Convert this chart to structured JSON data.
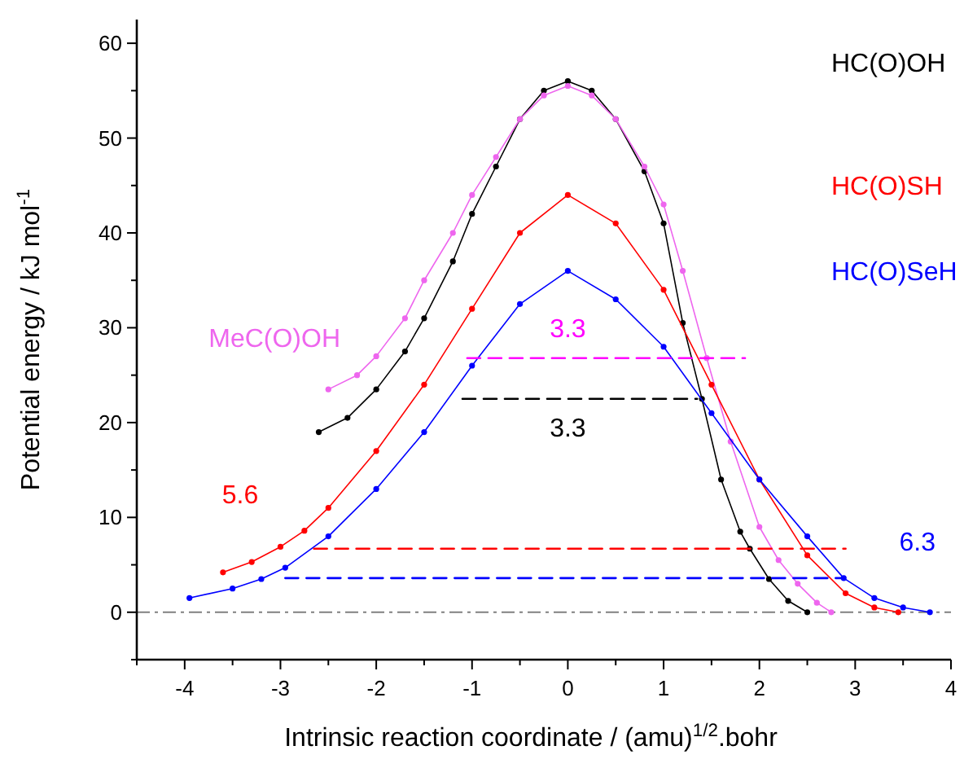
{
  "chart_data": {
    "type": "line",
    "xlabel": "Intrinsic reaction coordinate / (amu)$^{1/2}$.bohr",
    "ylabel": "Potential energy / kJ mol$^{-1}$",
    "xlim": [
      -4.5,
      4
    ],
    "xticks": [
      -4,
      -3,
      -2,
      -1,
      0,
      1,
      2,
      3,
      4
    ],
    "ylim": [
      -5,
      62.5
    ],
    "yticks": [
      0,
      10,
      20,
      30,
      40,
      50,
      60
    ],
    "grid": false,
    "series": [
      {
        "name": "HC(O)OH",
        "color": "#000000",
        "marker": "circle",
        "x": [
          -2.6,
          -2.3,
          -2,
          -1.7,
          -1.5,
          -1.2,
          -1,
          -0.75,
          -0.5,
          -0.25,
          0,
          0.25,
          0.5,
          0.8,
          1,
          1.2,
          1.4,
          1.6,
          1.8,
          1.9,
          2.1,
          2.3,
          2.5
        ],
        "values": [
          19,
          20.5,
          23.5,
          27.5,
          31,
          37,
          42,
          47,
          52,
          55,
          56,
          55,
          52,
          46.5,
          41,
          30.5,
          22.5,
          14,
          8.5,
          6.7,
          3.5,
          1.2,
          0
        ]
      },
      {
        "name": "MeC(O)OH",
        "color": "#ee66ee",
        "marker": "circle",
        "x": [
          -2.5,
          -2.2,
          -2,
          -1.7,
          -1.5,
          -1.2,
          -1,
          -0.75,
          -0.5,
          -0.25,
          0,
          0.25,
          0.5,
          0.8,
          1,
          1.2,
          1.45,
          1.7,
          2,
          2.2,
          2.4,
          2.6,
          2.75
        ],
        "values": [
          23.5,
          25,
          27,
          31,
          35,
          40,
          44,
          48,
          52,
          54.5,
          55.5,
          54.5,
          52,
          47,
          43,
          36,
          26.8,
          18,
          9,
          5.5,
          3,
          1,
          0
        ]
      },
      {
        "name": "HC(O)SH",
        "color": "#ff0000",
        "marker": "circle",
        "x": [
          -3.6,
          -3.3,
          -3,
          -2.75,
          -2.5,
          -2,
          -1.5,
          -1,
          -0.5,
          0,
          0.5,
          1,
          1.5,
          2,
          2.5,
          2.9,
          3.2,
          3.45
        ],
        "values": [
          4.2,
          5.3,
          6.9,
          8.6,
          11,
          17,
          24,
          32,
          40,
          44,
          41,
          34,
          24,
          14,
          6,
          2,
          0.5,
          0
        ]
      },
      {
        "name": "HC(O)SeH",
        "color": "#0000ff",
        "marker": "circle",
        "x": [
          -3.95,
          -3.5,
          -3.2,
          -2.95,
          -2.5,
          -2,
          -1.5,
          -1,
          -0.5,
          0,
          0.5,
          1,
          1.5,
          2,
          2.5,
          2.88,
          3.2,
          3.5,
          3.78
        ],
        "values": [
          1.5,
          2.5,
          3.5,
          4.7,
          8,
          13,
          19,
          26,
          32.5,
          36,
          33,
          28,
          21,
          14,
          8,
          3.6,
          1.5,
          0.5,
          0
        ]
      },
      {
        "color": "#ff00ff",
        "marker": "none",
        "line_style": "dashed",
        "x": [
          -1.05,
          1.85
        ],
        "values": [
          26.8,
          26.8
        ]
      },
      {
        "color": "#000000",
        "marker": "none",
        "line_style": "dashed",
        "x": [
          -1.1,
          1.35
        ],
        "values": [
          22.5,
          22.5
        ]
      },
      {
        "color": "#ff0000",
        "marker": "none",
        "line_style": "dashed",
        "x": [
          -2.65,
          2.9
        ],
        "values": [
          6.7,
          6.7
        ]
      },
      {
        "color": "#0000ff",
        "marker": "none",
        "line_style": "dashed",
        "x": [
          -2.95,
          2.88
        ],
        "values": [
          3.6,
          3.6
        ]
      }
    ],
    "annotations": [
      "3.3",
      "3.3",
      "5.6",
      "6.3"
    ],
    "ref_lines": [
      {
        "axis": "y",
        "value": 0,
        "color": "#808080",
        "line_style": "dashdot"
      }
    ]
  }
}
